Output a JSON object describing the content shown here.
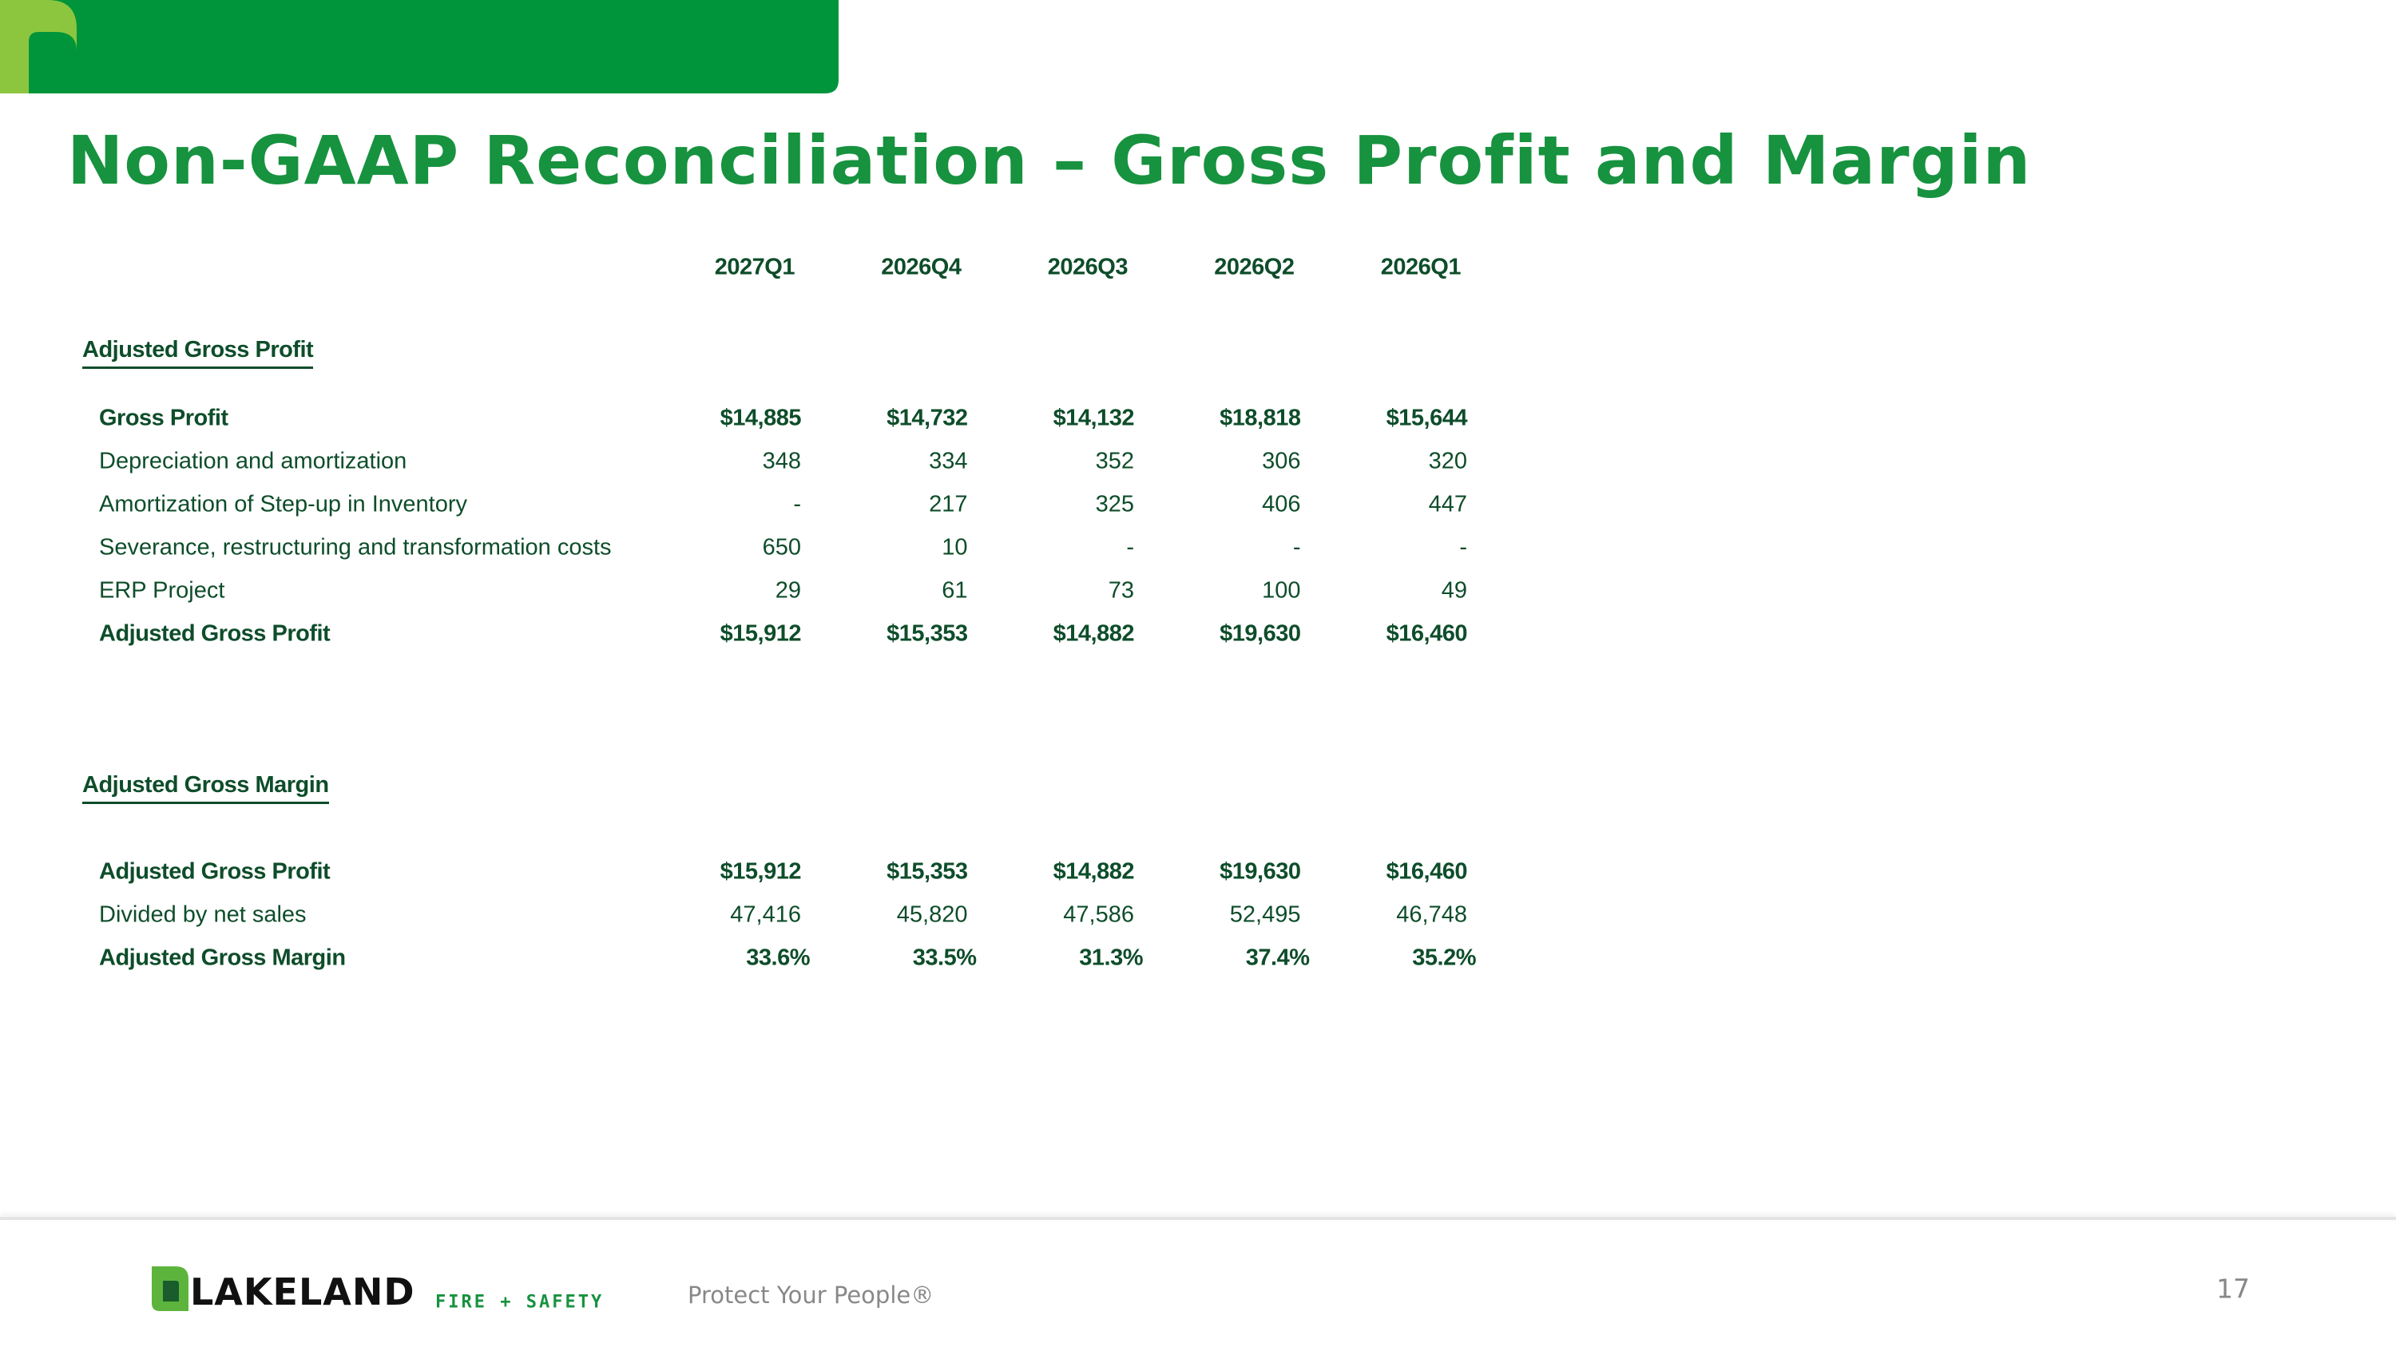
{
  "header": {
    "title": "Non-GAAP Reconciliation – Gross Profit and Margin"
  },
  "table": {
    "columns": [
      "2027Q1",
      "2026Q4",
      "2026Q3",
      "2026Q2",
      "2026Q1"
    ],
    "sections": [
      {
        "title": "Adjusted Gross Profit",
        "rows": [
          {
            "label": "Gross Profit",
            "bold": true,
            "values": [
              "$14,885",
              "$14,732",
              "$14,132",
              "$18,818",
              "$15,644"
            ]
          },
          {
            "label": "Depreciation and amortization",
            "bold": false,
            "values": [
              "348",
              "334",
              "352",
              "306",
              "320"
            ]
          },
          {
            "label": "Amortization of Step-up in Inventory",
            "bold": false,
            "values": [
              "-",
              "217",
              "325",
              "406",
              "447"
            ]
          },
          {
            "label": "Severance, restructuring and transformation costs",
            "bold": false,
            "values": [
              "650",
              "10",
              "-",
              "-",
              "-"
            ]
          },
          {
            "label": "ERP Project",
            "bold": false,
            "values": [
              "29",
              "61",
              "73",
              "100",
              "49"
            ]
          },
          {
            "label": "Adjusted Gross Profit",
            "bold": true,
            "values": [
              "$15,912",
              "$15,353",
              "$14,882",
              "$19,630",
              "$16,460"
            ]
          }
        ]
      },
      {
        "title": "Adjusted Gross Margin",
        "rows": [
          {
            "label": "Adjusted Gross Profit",
            "bold": true,
            "values": [
              "$15,912",
              "$15,353",
              "$14,882",
              "$19,630",
              "$16,460"
            ]
          },
          {
            "label": "Divided by net sales",
            "bold": false,
            "values": [
              "47,416",
              "45,820",
              "47,586",
              "52,495",
              "46,748"
            ]
          },
          {
            "label": "Adjusted Gross Margin",
            "bold": true,
            "values": [
              "33.6%",
              "33.5%",
              "31.3%",
              "37.4%",
              "35.2%"
            ]
          }
        ]
      }
    ]
  },
  "footer": {
    "brand": "LAKELAND",
    "tagline": "FIRE + SAFETY",
    "slogan": "Protect Your People®",
    "page": "17"
  }
}
